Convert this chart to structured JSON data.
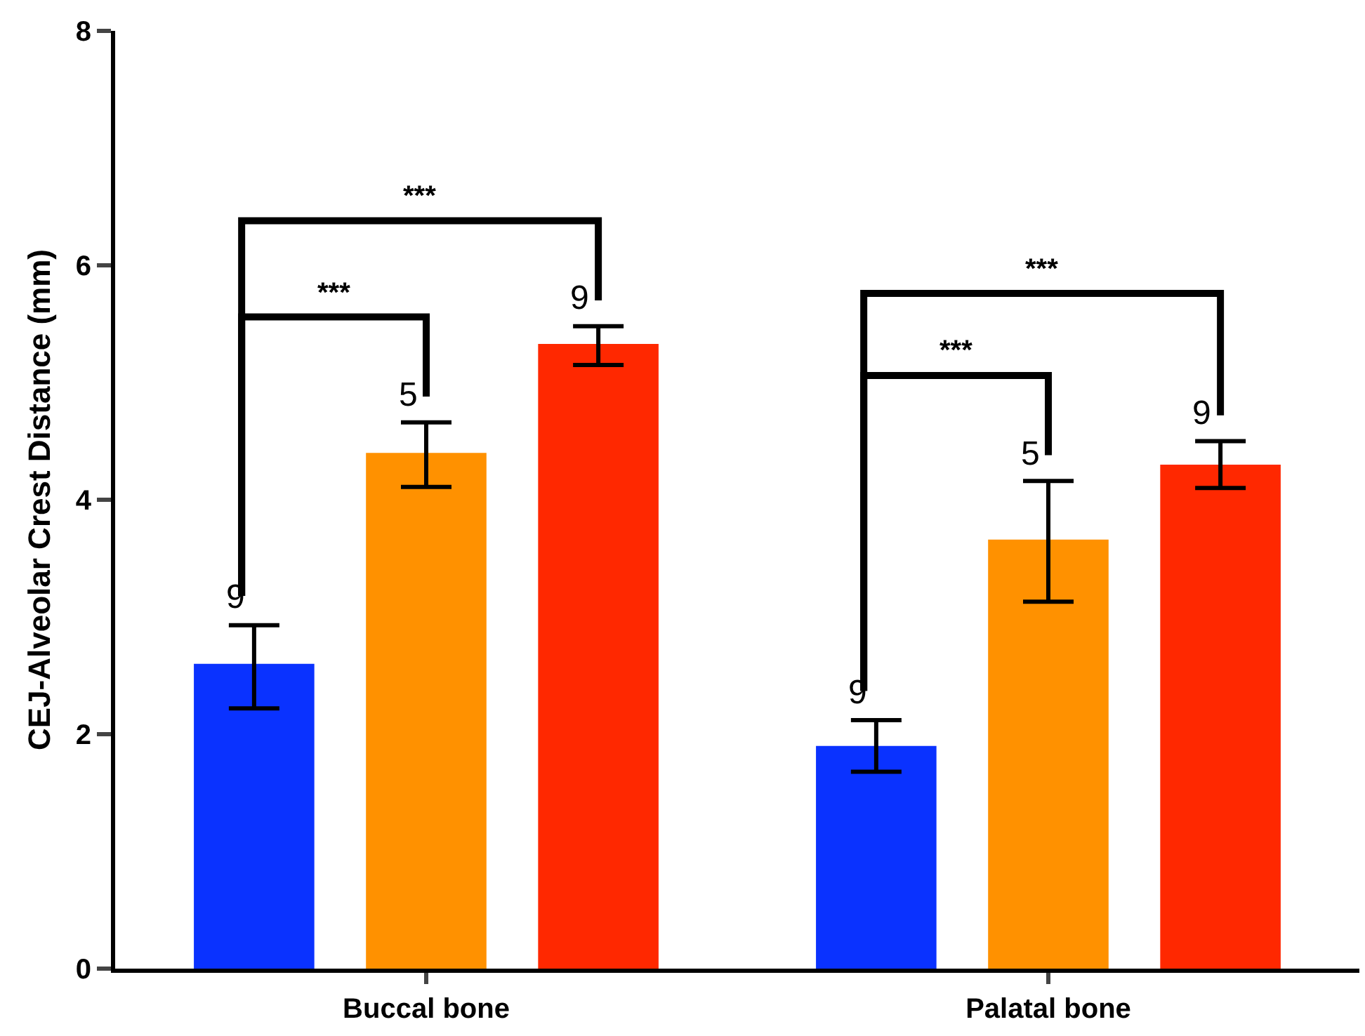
{
  "chart_data": {
    "type": "bar",
    "ylabel": "CEJ-Alveolar Crest Distance (mm)",
    "categories": [
      "Buccal bone",
      "Palatal bone"
    ],
    "series": [
      {
        "colors": [
          "#0a32ff",
          "#0a32ff"
        ],
        "values": [
          2.6,
          1.9
        ],
        "errors": [
          [
            2.22,
            2.93
          ],
          [
            1.68,
            2.12
          ]
        ]
      },
      {
        "colors": [
          "#ff9100",
          "#ff9100"
        ],
        "values": [
          4.4,
          3.66
        ],
        "errors": [
          [
            4.11,
            4.66
          ],
          [
            3.13,
            4.16
          ]
        ]
      },
      {
        "colors": [
          "#ff2800",
          "#ff2800"
        ],
        "values": [
          5.33,
          4.3
        ],
        "errors": [
          [
            5.15,
            5.48
          ],
          [
            4.1,
            4.5
          ]
        ]
      }
    ],
    "ylim": [
      0,
      8
    ],
    "yticks": [
      0,
      2,
      4,
      6,
      8
    ],
    "grid": false,
    "annotations": [
      "9",
      "5",
      "9",
      "***",
      "***",
      "9",
      "5",
      "9",
      "***",
      "***"
    ]
  }
}
